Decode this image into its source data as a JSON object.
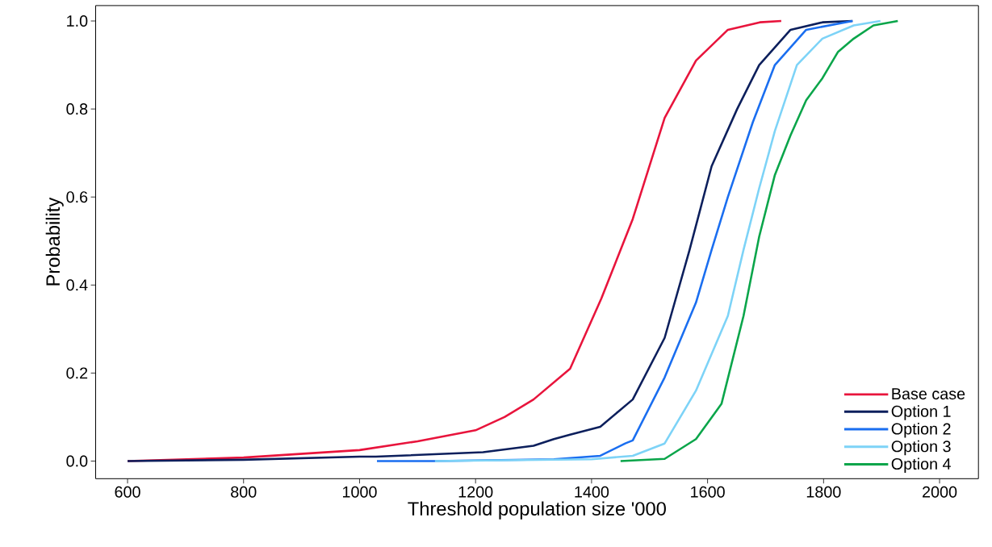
{
  "chart_data": {
    "type": "line",
    "xlabel": "Threshold population size '000",
    "ylabel": "Probability",
    "xlim": [
      545,
      2067
    ],
    "ylim": [
      -0.04,
      1.035
    ],
    "xticks": [
      600,
      800,
      1000,
      1200,
      1400,
      1600,
      1800,
      2000
    ],
    "yticks": [
      {
        "value": 0,
        "label": "0.0"
      },
      0.2,
      0.4,
      0.6,
      0.8,
      {
        "value": 1,
        "label": "1.0"
      }
    ],
    "grid": false,
    "legend": "bottom right",
    "marker": "none",
    "line_style": "solid",
    "series": [
      {
        "name": "Base case",
        "color": "#e8143c",
        "x": [
          600,
          800,
          1000,
          1100,
          1200,
          1250,
          1300,
          1363,
          1417,
          1471,
          1526,
          1580,
          1635,
          1690,
          1727
        ],
        "values": [
          0,
          0.008,
          0.025,
          0.045,
          0.07,
          0.1,
          0.14,
          0.21,
          0.37,
          0.55,
          0.78,
          0.91,
          0.98,
          0.997,
          1.0
        ]
      },
      {
        "name": "Option 1",
        "color": "#0c1f5c",
        "x": [
          600,
          800,
          1000,
          1028,
          1213,
          1300,
          1335,
          1363,
          1415,
          1471,
          1526,
          1569,
          1607,
          1651,
          1689,
          1743,
          1798,
          1850
        ],
        "values": [
          0,
          0.003,
          0.01,
          0.01,
          0.02,
          0.035,
          0.05,
          0.06,
          0.078,
          0.14,
          0.28,
          0.48,
          0.67,
          0.8,
          0.9,
          0.98,
          0.997,
          1.0
        ]
      },
      {
        "name": "Option 2",
        "color": "#1a6ef0",
        "x": [
          1030,
          1130,
          1335,
          1415,
          1458,
          1471,
          1526,
          1580,
          1607,
          1635,
          1678,
          1716,
          1770,
          1850
        ],
        "values": [
          0,
          0,
          0.004,
          0.012,
          0.04,
          0.047,
          0.19,
          0.36,
          0.48,
          0.6,
          0.77,
          0.9,
          0.98,
          1.0
        ]
      },
      {
        "name": "Option 3",
        "color": "#7dd3f7",
        "x": [
          1130,
          1400,
          1471,
          1526,
          1580,
          1635,
          1662,
          1689,
          1716,
          1754,
          1798,
          1852,
          1898
        ],
        "values": [
          0,
          0.004,
          0.012,
          0.04,
          0.16,
          0.33,
          0.48,
          0.62,
          0.75,
          0.9,
          0.96,
          0.99,
          1.0
        ]
      },
      {
        "name": "Option 4",
        "color": "#0aa54a",
        "x": [
          1450,
          1526,
          1580,
          1624,
          1662,
          1689,
          1716,
          1743,
          1770,
          1798,
          1825,
          1852,
          1886,
          1928
        ],
        "values": [
          0,
          0.005,
          0.05,
          0.13,
          0.33,
          0.51,
          0.65,
          0.74,
          0.82,
          0.87,
          0.93,
          0.96,
          0.99,
          1.0
        ]
      }
    ]
  }
}
